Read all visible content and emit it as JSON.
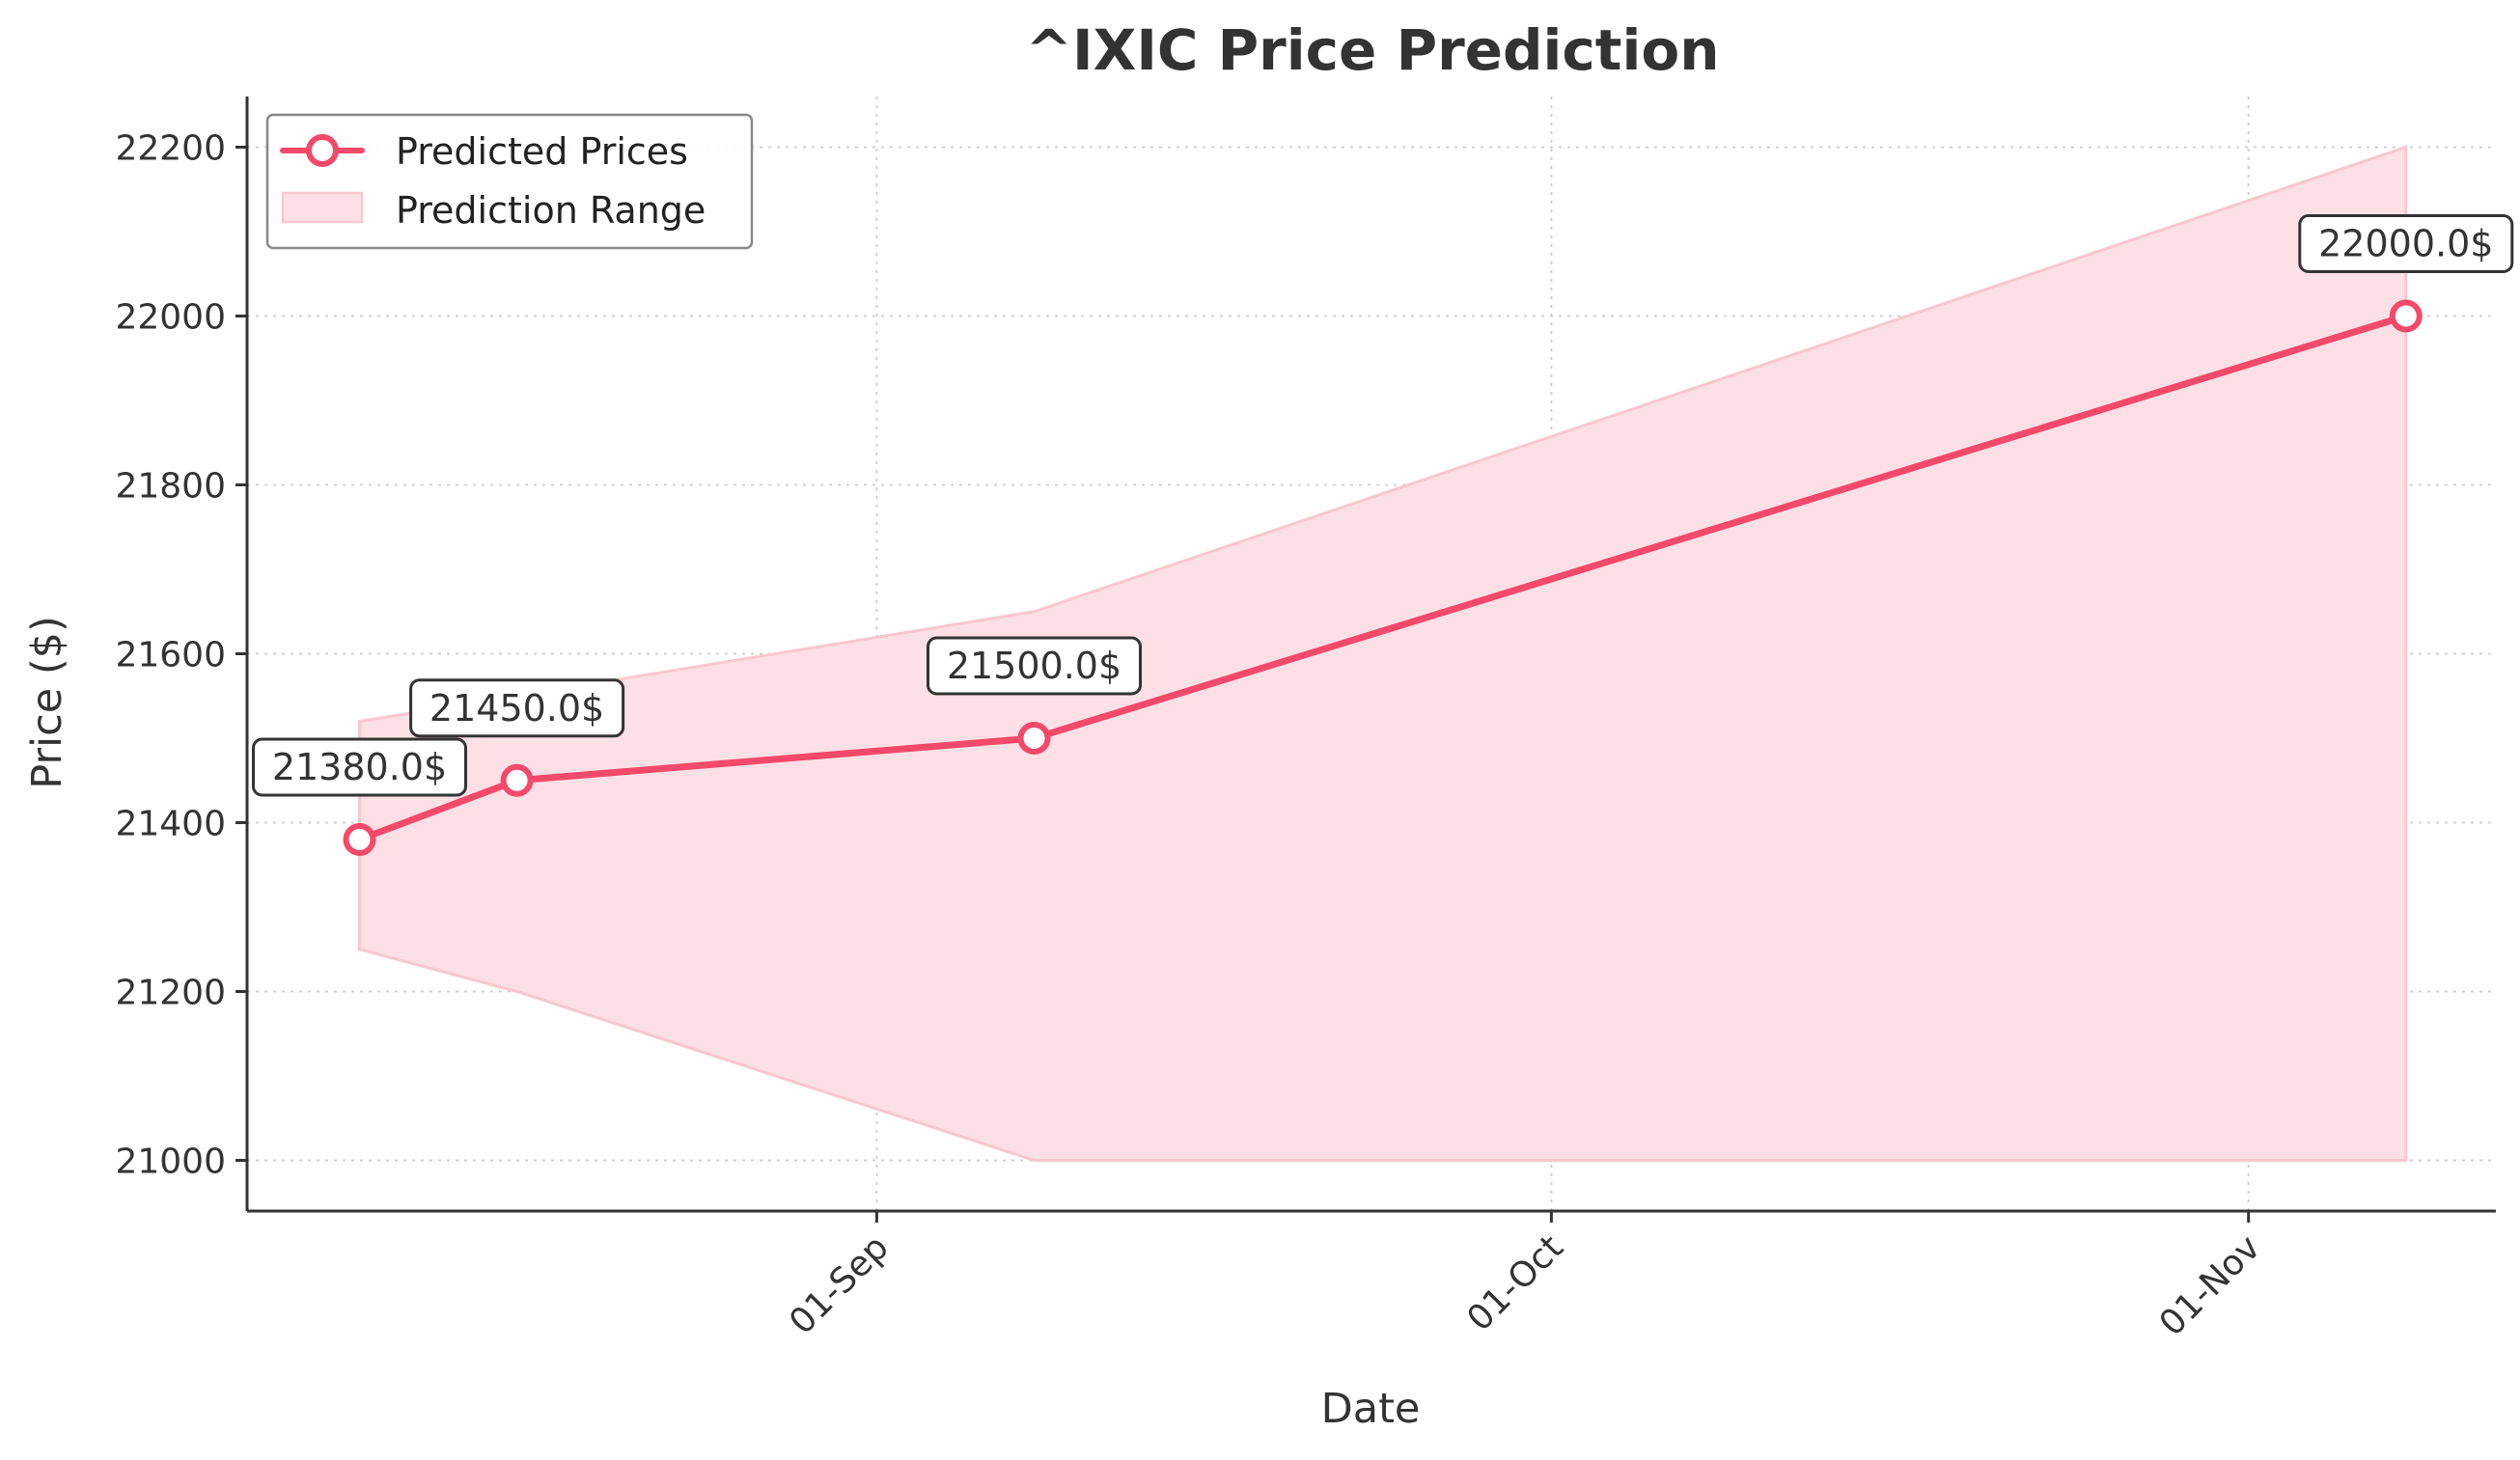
{
  "chart_data": {
    "type": "line",
    "title": "^IXIC Price Prediction",
    "xlabel": "Date",
    "ylabel": "Price ($)",
    "x_ticks": [
      {
        "date": "2025-09-01",
        "label": "01-Sep"
      },
      {
        "date": "2025-10-01",
        "label": "01-Oct"
      },
      {
        "date": "2025-11-01",
        "label": "01-Nov"
      }
    ],
    "y_ticks": [
      21000,
      21200,
      21400,
      21600,
      21800,
      22000,
      22200
    ],
    "xlim": [
      "2025-08-04",
      "2025-11-12"
    ],
    "ylim": [
      20940,
      22260
    ],
    "grid": true,
    "legend_position": "top-left",
    "colors": {
      "line": "#f4496a",
      "band_fill": "#fde0e5",
      "band_edge": "#f9c7d0",
      "axis": "#333333",
      "grid": "#d0d0d0",
      "label_box_border": "#333333"
    },
    "series": [
      {
        "name": "Predicted Prices",
        "points": [
          {
            "x": "2025-08-09",
            "y": 21380,
            "label": "21380.0$"
          },
          {
            "x": "2025-08-16",
            "y": 21450,
            "label": "21450.0$"
          },
          {
            "x": "2025-09-08",
            "y": 21500,
            "label": "21500.0$"
          },
          {
            "x": "2025-11-08",
            "y": 22000,
            "label": "22000.0$"
          }
        ]
      }
    ],
    "range_band": {
      "name": "Prediction Range",
      "points": [
        {
          "x": "2025-08-09",
          "low": 21250,
          "high": 21520
        },
        {
          "x": "2025-08-16",
          "low": 21200,
          "high": 21550
        },
        {
          "x": "2025-09-08",
          "low": 21000,
          "high": 21650
        },
        {
          "x": "2025-11-08",
          "low": 21000,
          "high": 22200
        }
      ]
    }
  }
}
